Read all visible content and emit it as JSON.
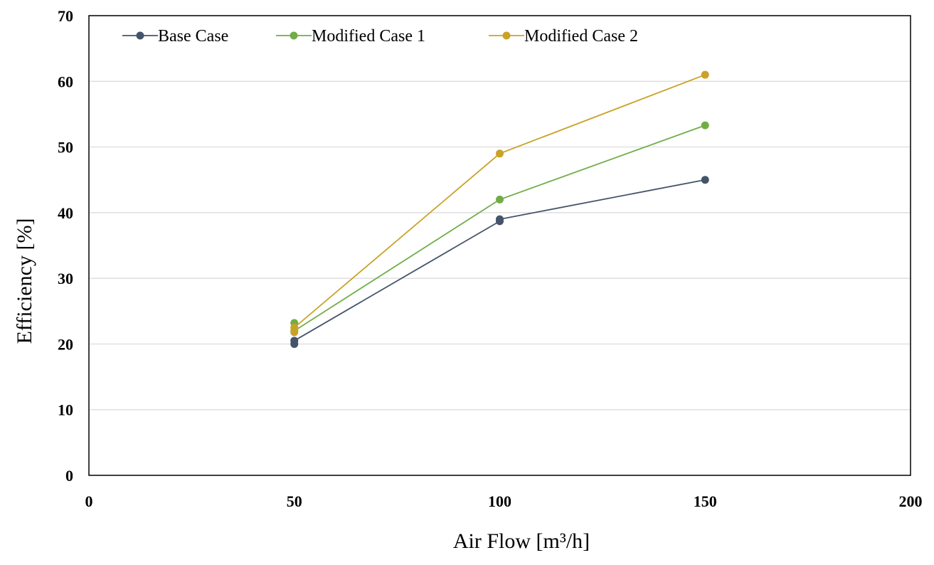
{
  "chart_data": {
    "type": "line",
    "title": "",
    "xlabel": "Air Flow [m³/h]",
    "ylabel": "Efficiency [%]",
    "xlim": [
      0,
      200
    ],
    "ylim": [
      0,
      70
    ],
    "xticks": [
      0,
      50,
      100,
      150,
      200
    ],
    "yticks": [
      0,
      10,
      20,
      30,
      40,
      50,
      60,
      70
    ],
    "grid": "horizontal",
    "legend_position": "top-left",
    "series": [
      {
        "name": "Base Case",
        "color": "#44546a",
        "points": [
          [
            50,
            20.0
          ],
          [
            50,
            20.5
          ],
          [
            100,
            38.7
          ],
          [
            100,
            39.0
          ],
          [
            150,
            45.0
          ]
        ]
      },
      {
        "name": "Modified Case 1",
        "color": "#70ad47",
        "points": [
          [
            50,
            23.2
          ],
          [
            50,
            22.0
          ],
          [
            100,
            42.0
          ],
          [
            150,
            53.3
          ]
        ]
      },
      {
        "name": "Modified Case 2",
        "color": "#c9a227",
        "points": [
          [
            50,
            21.8
          ],
          [
            50,
            22.5
          ],
          [
            100,
            49.0
          ],
          [
            150,
            61.0
          ]
        ]
      }
    ]
  }
}
